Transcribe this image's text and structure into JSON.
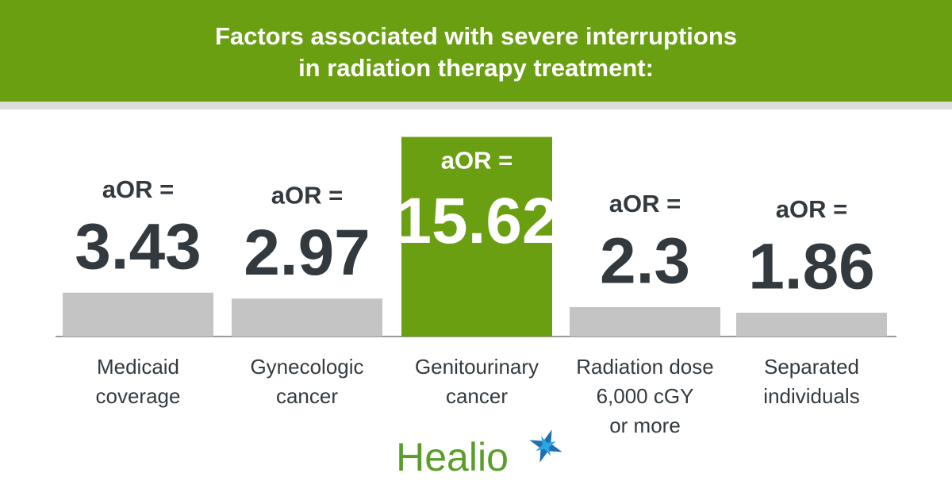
{
  "chart_data": {
    "type": "bar",
    "title": "Factors associated with severe interruptions\nin radiation therapy treatment:",
    "label_prefix": "aOR =",
    "categories": [
      "Medicaid\ncoverage",
      "Gynecologic\ncancer",
      "Genitourinary\ncancer",
      "Radiation dose\n6,000 cGY\nor more",
      "Separated\nindividuals"
    ],
    "values": [
      3.43,
      2.97,
      15.62,
      2.3,
      1.86
    ],
    "color": "#c4c4c4",
    "highlight_index": 2,
    "highlight_color": "#6a9f12",
    "brand": "Healio"
  }
}
